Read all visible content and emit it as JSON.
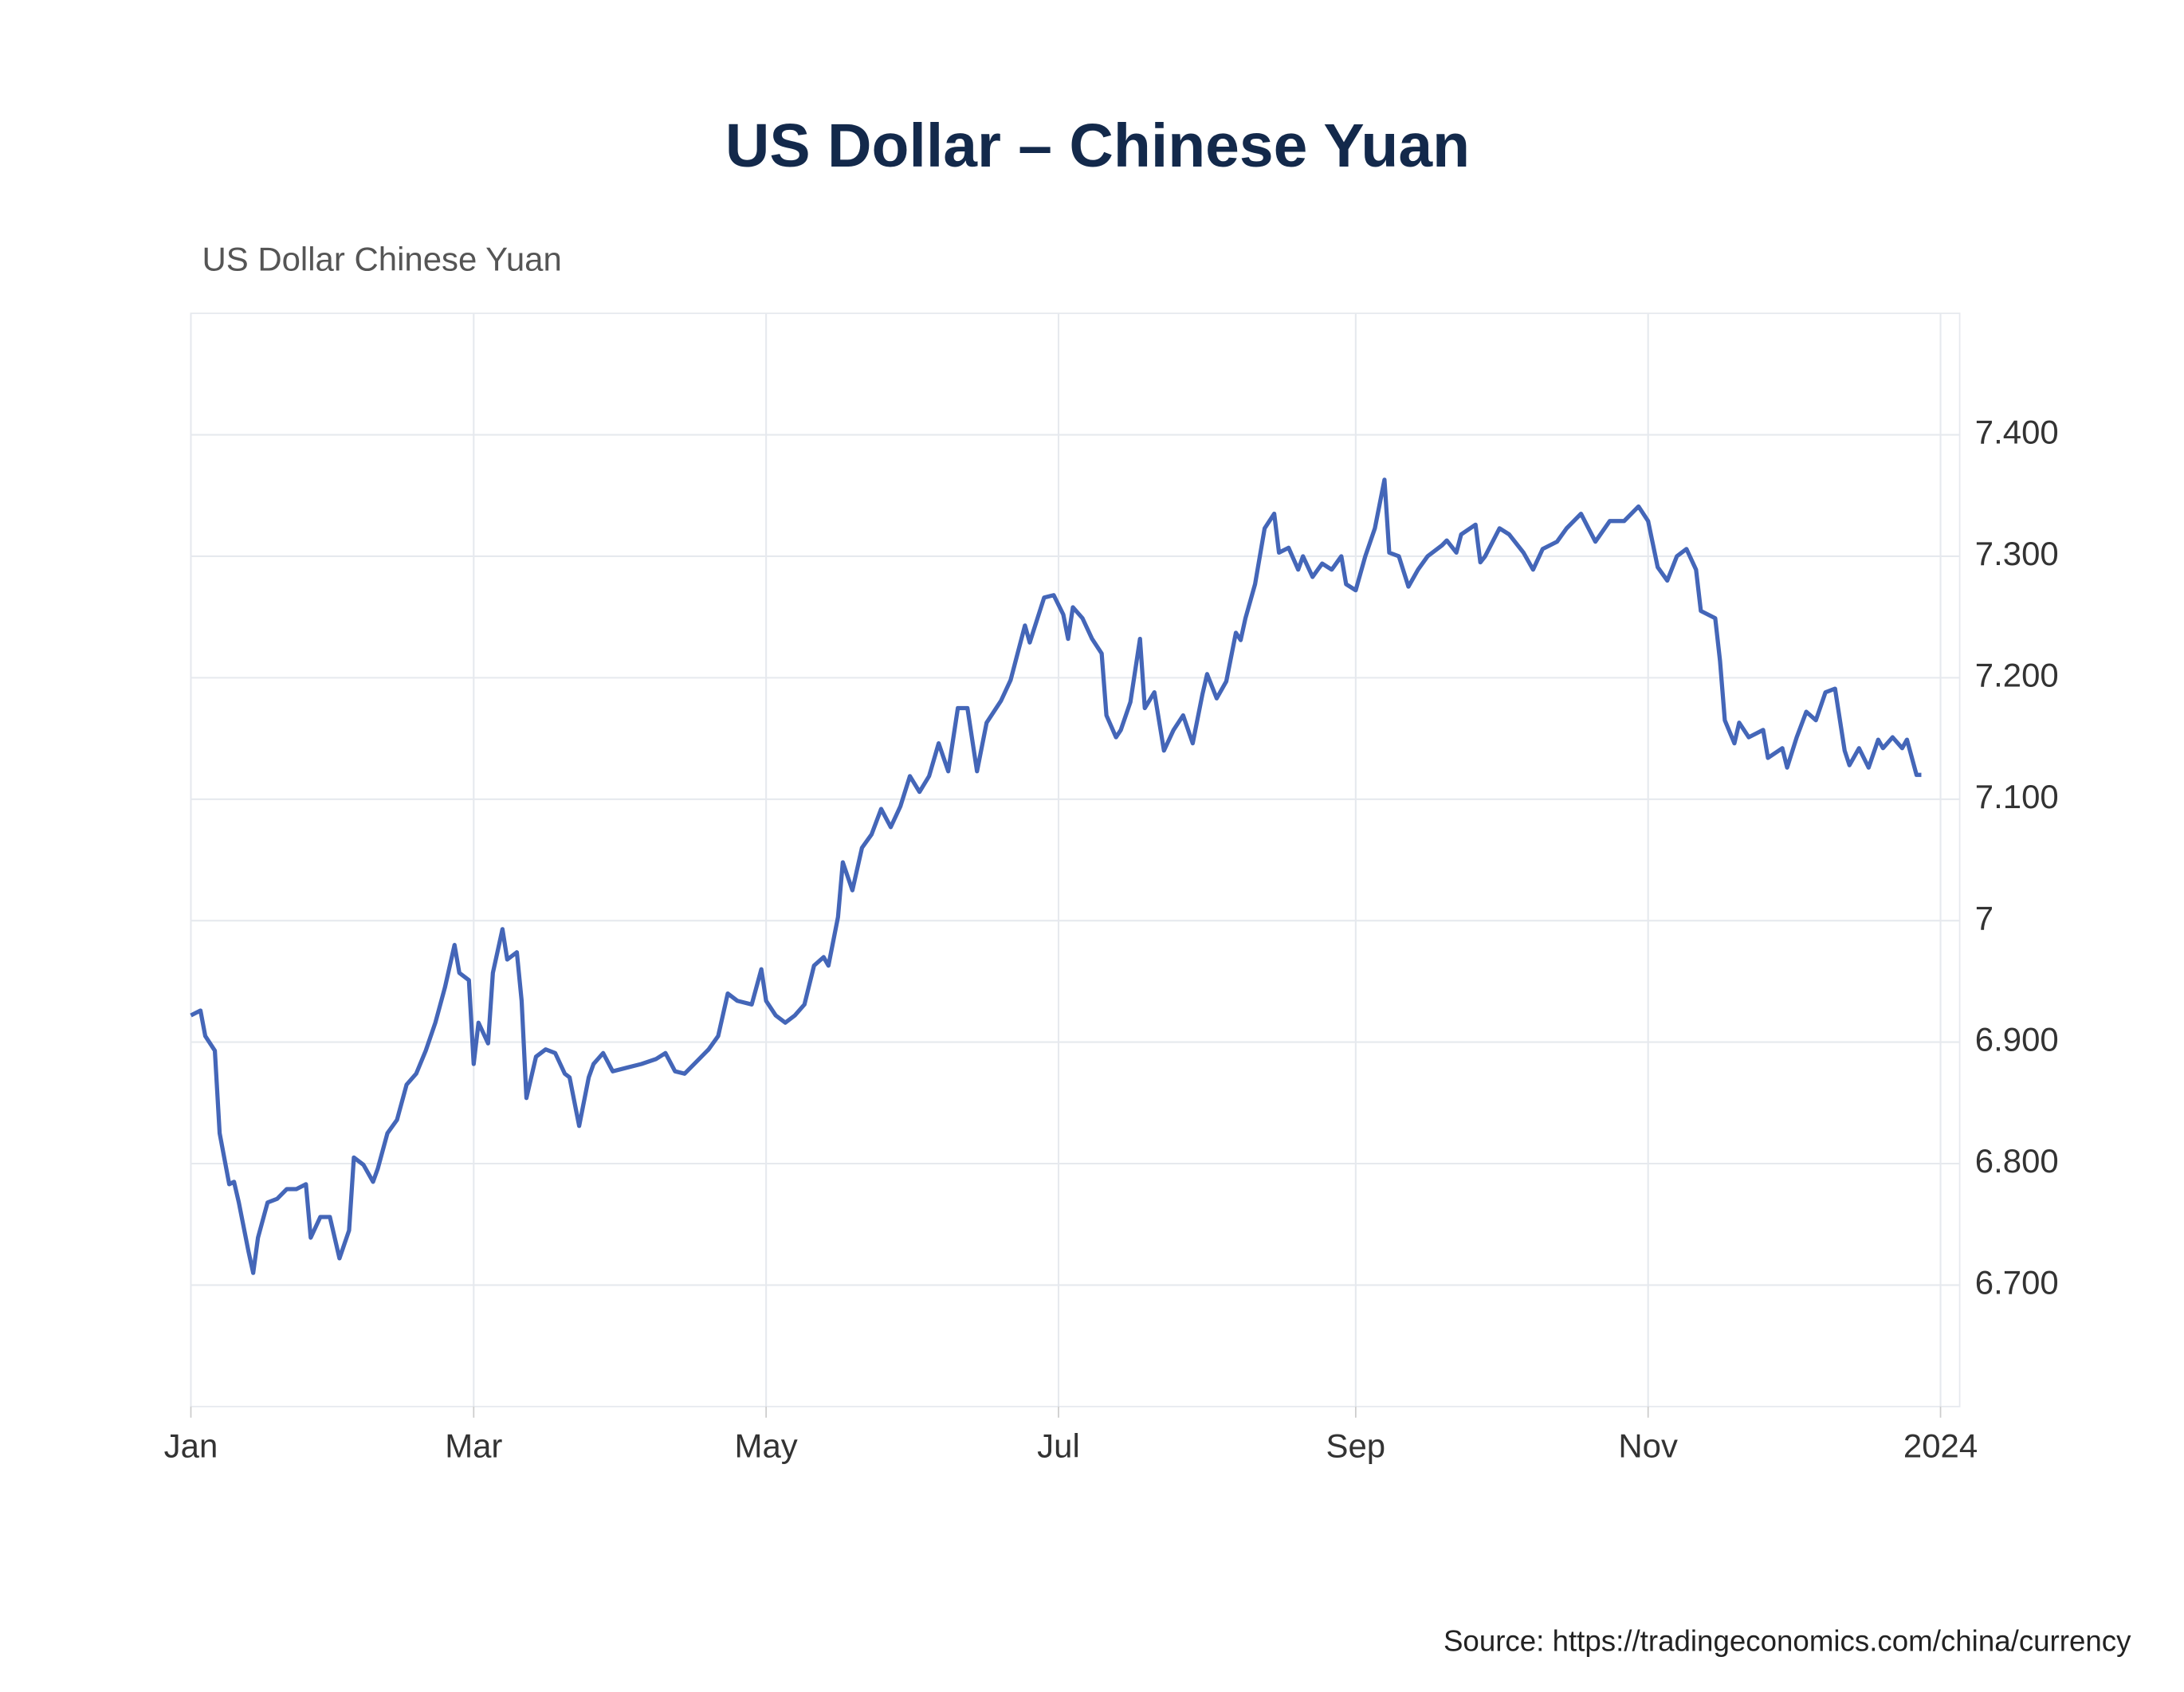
{
  "chart_data": {
    "type": "line",
    "title": "US Dollar – Chinese Yuan",
    "source": "Source: https://tradingeconomics.com/china/currency",
    "x": [
      0,
      2,
      3,
      5,
      6,
      8,
      9,
      10,
      12,
      13,
      14,
      16,
      18,
      20,
      22,
      24,
      25,
      27,
      29,
      31,
      33,
      34,
      36,
      38,
      39,
      41,
      43,
      45,
      47,
      49,
      51,
      53,
      55,
      56,
      58,
      59,
      60,
      62,
      63,
      65,
      66,
      68,
      69,
      70,
      72,
      74,
      76,
      78,
      79,
      81,
      83,
      84,
      86,
      88,
      91,
      94,
      97,
      99,
      101,
      103,
      106,
      108,
      110,
      112,
      114,
      117,
      119,
      120,
      122,
      124,
      126,
      128,
      130,
      132,
      133,
      135,
      136,
      138,
      140,
      142,
      144,
      146,
      148,
      150,
      152,
      154,
      156,
      158,
      160,
      162,
      164,
      166,
      169,
      171,
      174,
      175,
      178,
      180,
      182,
      183,
      184,
      186,
      188,
      190,
      191,
      193,
      194,
      196,
      198,
      199,
      201,
      203,
      205,
      207,
      209,
      211,
      212,
      214,
      216,
      218,
      219,
      220,
      222,
      224,
      226,
      227,
      229,
      231,
      232,
      234,
      236,
      238,
      240,
      241,
      243,
      245,
      247,
      249,
      250,
      252,
      254,
      256,
      258,
      261,
      262,
      264,
      265,
      268,
      269,
      270,
      273,
      275,
      278,
      280,
      282,
      285,
      287,
      290,
      293,
      296,
      299,
      302,
      304,
      306,
      308,
      310,
      312,
      314,
      315,
      318,
      319,
      320,
      322,
      323,
      325,
      328,
      329,
      332,
      333,
      335,
      337,
      339,
      341,
      343,
      345,
      346,
      348,
      350,
      352,
      353,
      355,
      357,
      358,
      360,
      361
    ],
    "series": [
      {
        "name": "US Dollar Chinese Yuan",
        "color": "#4466b8",
        "values": [
          6.922,
          6.926,
          6.905,
          6.893,
          6.825,
          6.783,
          6.785,
          6.768,
          6.728,
          6.71,
          6.739,
          6.768,
          6.771,
          6.779,
          6.779,
          6.783,
          6.739,
          6.756,
          6.756,
          6.722,
          6.745,
          6.805,
          6.799,
          6.785,
          6.796,
          6.825,
          6.836,
          6.865,
          6.874,
          6.893,
          6.916,
          6.945,
          6.98,
          6.957,
          6.951,
          6.882,
          6.916,
          6.899,
          6.957,
          6.993,
          6.968,
          6.974,
          6.934,
          6.854,
          6.888,
          6.894,
          6.891,
          6.874,
          6.871,
          6.831,
          6.871,
          6.882,
          6.891,
          6.876,
          6.879,
          6.882,
          6.886,
          6.891,
          6.876,
          6.874,
          6.886,
          6.894,
          6.905,
          6.94,
          6.934,
          6.931,
          6.96,
          6.934,
          6.922,
          6.916,
          6.922,
          6.931,
          6.963,
          6.97,
          6.963,
          7.003,
          7.048,
          7.025,
          7.06,
          7.071,
          7.092,
          7.077,
          7.094,
          7.119,
          7.106,
          7.119,
          7.146,
          7.123,
          7.175,
          7.175,
          7.123,
          7.163,
          7.181,
          7.198,
          7.243,
          7.229,
          7.266,
          7.268,
          7.252,
          7.232,
          7.258,
          7.249,
          7.232,
          7.22,
          7.169,
          7.151,
          7.157,
          7.18,
          7.232,
          7.175,
          7.188,
          7.14,
          7.157,
          7.169,
          7.146,
          7.186,
          7.203,
          7.183,
          7.197,
          7.237,
          7.231,
          7.249,
          7.277,
          7.323,
          7.335,
          7.303,
          7.307,
          7.289,
          7.3,
          7.283,
          7.294,
          7.289,
          7.3,
          7.277,
          7.272,
          7.3,
          7.323,
          7.363,
          7.303,
          7.3,
          7.275,
          7.289,
          7.3,
          7.309,
          7.313,
          7.303,
          7.318,
          7.326,
          7.295,
          7.3,
          7.323,
          7.318,
          7.303,
          7.289,
          7.306,
          7.312,
          7.323,
          7.335,
          7.312,
          7.329,
          7.329,
          7.341,
          7.329,
          7.291,
          7.28,
          7.3,
          7.306,
          7.289,
          7.255,
          7.249,
          7.214,
          7.165,
          7.146,
          7.163,
          7.151,
          7.157,
          7.134,
          7.142,
          7.126,
          7.151,
          7.172,
          7.165,
          7.188,
          7.191,
          7.14,
          7.128,
          7.142,
          7.126,
          7.149,
          7.142,
          7.151,
          7.142,
          7.149,
          7.12,
          7.12
        ]
      }
    ],
    "xlim": [
      0,
      369
    ],
    "xticks": [
      {
        "value": 0,
        "label": "Jan"
      },
      {
        "value": 59,
        "label": "Mar"
      },
      {
        "value": 120,
        "label": "May"
      },
      {
        "value": 181,
        "label": "Jul"
      },
      {
        "value": 243,
        "label": "Sep"
      },
      {
        "value": 304,
        "label": "Nov"
      },
      {
        "value": 365,
        "label": "2024"
      }
    ],
    "ylim": [
      6.6,
      7.5
    ],
    "yticks": [
      {
        "value": 6.7,
        "label": "6.700"
      },
      {
        "value": 6.8,
        "label": "6.800"
      },
      {
        "value": 6.9,
        "label": "6.900"
      },
      7,
      {
        "value": 7.1,
        "label": "7.100"
      },
      {
        "value": 7.2,
        "label": "7.200"
      },
      {
        "value": 7.3,
        "label": "7.300"
      },
      {
        "value": 7.4,
        "label": "7.400"
      }
    ],
    "grid": true
  }
}
